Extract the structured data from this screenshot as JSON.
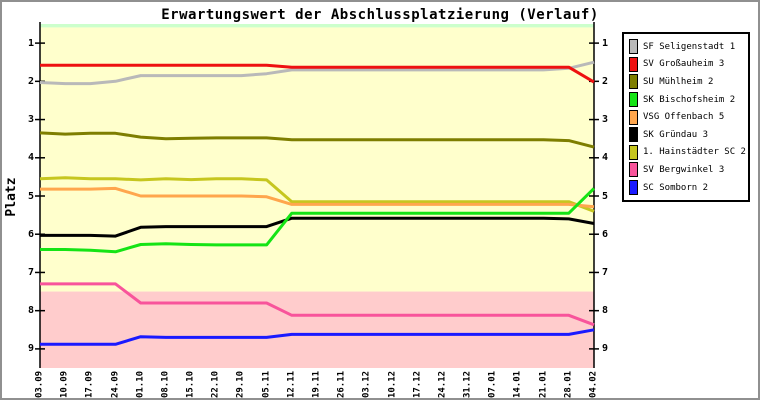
{
  "title": "Erwartungswert der Abschlussplatzierung (Verlauf)",
  "y_axis": {
    "label": "Platz",
    "ticks": [
      "1",
      "2",
      "3",
      "4",
      "5",
      "6",
      "7",
      "8",
      "9"
    ]
  },
  "colors": {
    "plot_background": "#FFFFCC",
    "relegation_zone": "#FFCCCC",
    "top_strip": "#CCFFCC",
    "axis": "#000000",
    "frame": "#909090"
  },
  "chart_data": {
    "type": "line",
    "title": "Erwartungswert der Abschlussplatzierung (Verlauf)",
    "xlabel": "",
    "ylabel": "Platz",
    "ylim": [
      0.5,
      9.5
    ],
    "y_axis_inverted": true,
    "grid": false,
    "legend_position": "top-right",
    "categories": [
      "03.09",
      "10.09",
      "17.09",
      "24.09",
      "01.10",
      "08.10",
      "15.10",
      "22.10",
      "29.10",
      "05.11",
      "12.11",
      "19.11",
      "26.11",
      "03.12",
      "10.12",
      "17.12",
      "24.12",
      "31.12",
      "07.01",
      "14.01",
      "21.01",
      "28.01",
      "04.02"
    ],
    "y_ticks": [
      1,
      2,
      3,
      4,
      5,
      6,
      7,
      8,
      9
    ],
    "zones": [
      {
        "name": "top-strip",
        "from": 0.5,
        "to": 0.59,
        "color": "#CCFFCC"
      },
      {
        "name": "main",
        "from": 0.59,
        "to": 7.5,
        "color": "#FFFFCC"
      },
      {
        "name": "relegation",
        "from": 7.5,
        "to": 9.5,
        "color": "#FFCCCC"
      }
    ],
    "series": [
      {
        "name": "SF Seligenstadt 1",
        "color": "#B9B9B9",
        "values": [
          2.03,
          2.06,
          2.06,
          2.0,
          1.85,
          1.85,
          1.85,
          1.85,
          1.85,
          1.8,
          1.7,
          1.7,
          1.7,
          1.7,
          1.7,
          1.7,
          1.7,
          1.7,
          1.7,
          1.7,
          1.7,
          1.66,
          1.5
        ]
      },
      {
        "name": "SV Großauheim 3",
        "color": "#EE1111",
        "values": [
          1.58,
          1.58,
          1.58,
          1.58,
          1.58,
          1.58,
          1.58,
          1.58,
          1.58,
          1.58,
          1.63,
          1.63,
          1.63,
          1.63,
          1.63,
          1.63,
          1.63,
          1.63,
          1.63,
          1.63,
          1.63,
          1.63,
          2.02
        ]
      },
      {
        "name": "SU Mühlheim 2",
        "color": "#7E7E00",
        "values": [
          3.35,
          3.38,
          3.36,
          3.36,
          3.46,
          3.5,
          3.49,
          3.48,
          3.48,
          3.48,
          3.53,
          3.53,
          3.53,
          3.53,
          3.53,
          3.53,
          3.53,
          3.53,
          3.53,
          3.53,
          3.53,
          3.55,
          3.72
        ]
      },
      {
        "name": "SK Bischofsheim 2",
        "color": "#15E415",
        "values": [
          6.4,
          6.4,
          6.42,
          6.46,
          6.27,
          6.25,
          6.27,
          6.28,
          6.28,
          6.28,
          5.45,
          5.45,
          5.45,
          5.45,
          5.45,
          5.45,
          5.45,
          5.45,
          5.45,
          5.45,
          5.45,
          5.45,
          4.8
        ]
      },
      {
        "name": "VSG Offenbach 5",
        "color": "#FFA64D",
        "values": [
          4.82,
          4.82,
          4.82,
          4.8,
          5.0,
          5.0,
          5.0,
          5.0,
          5.0,
          5.02,
          5.22,
          5.22,
          5.22,
          5.22,
          5.22,
          5.22,
          5.22,
          5.22,
          5.22,
          5.22,
          5.22,
          5.22,
          5.28
        ]
      },
      {
        "name": "SK Gründau 3",
        "color": "#000000",
        "values": [
          6.03,
          6.03,
          6.03,
          6.05,
          5.82,
          5.8,
          5.8,
          5.8,
          5.8,
          5.8,
          5.58,
          5.58,
          5.58,
          5.58,
          5.58,
          5.58,
          5.58,
          5.58,
          5.58,
          5.58,
          5.58,
          5.6,
          5.72
        ]
      },
      {
        "name": "1. Hainstädter SC 2",
        "color": "#C6C61F",
        "values": [
          4.55,
          4.52,
          4.55,
          4.55,
          4.58,
          4.55,
          4.57,
          4.55,
          4.55,
          4.58,
          5.15,
          5.15,
          5.15,
          5.15,
          5.15,
          5.15,
          5.15,
          5.15,
          5.15,
          5.15,
          5.15,
          5.15,
          5.4
        ]
      },
      {
        "name": "SV Bergwinkel 3",
        "color": "#F8549B",
        "values": [
          7.3,
          7.3,
          7.3,
          7.3,
          7.8,
          7.8,
          7.8,
          7.8,
          7.8,
          7.8,
          8.12,
          8.12,
          8.12,
          8.12,
          8.12,
          8.12,
          8.12,
          8.12,
          8.12,
          8.12,
          8.12,
          8.12,
          8.37
        ]
      },
      {
        "name": "SC Somborn 2",
        "color": "#1A1AFF",
        "values": [
          8.88,
          8.88,
          8.88,
          8.88,
          8.68,
          8.7,
          8.7,
          8.7,
          8.7,
          8.7,
          8.62,
          8.62,
          8.62,
          8.62,
          8.62,
          8.62,
          8.62,
          8.62,
          8.62,
          8.62,
          8.62,
          8.62,
          8.5
        ]
      }
    ]
  }
}
